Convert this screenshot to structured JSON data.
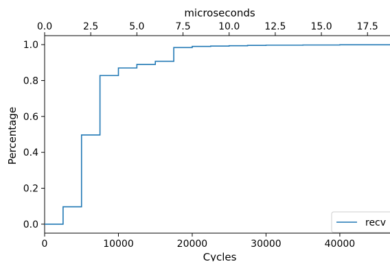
{
  "chart_data": {
    "type": "line",
    "step": "post",
    "xlabel": "Cycles",
    "ylabel": "Percentage",
    "top_axis_label": "microseconds",
    "xlim": [
      0,
      46800
    ],
    "ylim": [
      -0.05,
      1.05
    ],
    "top_xlim": [
      0,
      18.72
    ],
    "x_ticks": [
      0,
      10000,
      20000,
      30000,
      40000
    ],
    "x_tick_labels": [
      "0",
      "10000",
      "20000",
      "30000",
      "40000"
    ],
    "y_ticks": [
      0.0,
      0.2,
      0.4,
      0.6,
      0.8,
      1.0
    ],
    "y_tick_labels": [
      "0.0",
      "0.2",
      "0.4",
      "0.6",
      "0.8",
      "1.0"
    ],
    "top_ticks": [
      0.0,
      2.5,
      5.0,
      7.5,
      10.0,
      12.5,
      15.0,
      17.5
    ],
    "top_tick_labels": [
      "0.0",
      "2.5",
      "5.0",
      "7.5",
      "10.0",
      "12.5",
      "15.0",
      "17.5"
    ],
    "grid": false,
    "legend_position": "bottom-right",
    "series": [
      {
        "name": "recv",
        "color": "#1f77b4",
        "x": [
          0,
          2500,
          5000,
          7500,
          10000,
          12500,
          15000,
          17500,
          20000,
          22500,
          25000,
          27500,
          30000,
          35000,
          40000,
          46800
        ],
        "y": [
          0.0,
          0.097,
          0.497,
          0.828,
          0.87,
          0.89,
          0.907,
          0.984,
          0.99,
          0.992,
          0.994,
          0.996,
          0.997,
          0.998,
          0.999,
          0.999
        ]
      }
    ]
  }
}
